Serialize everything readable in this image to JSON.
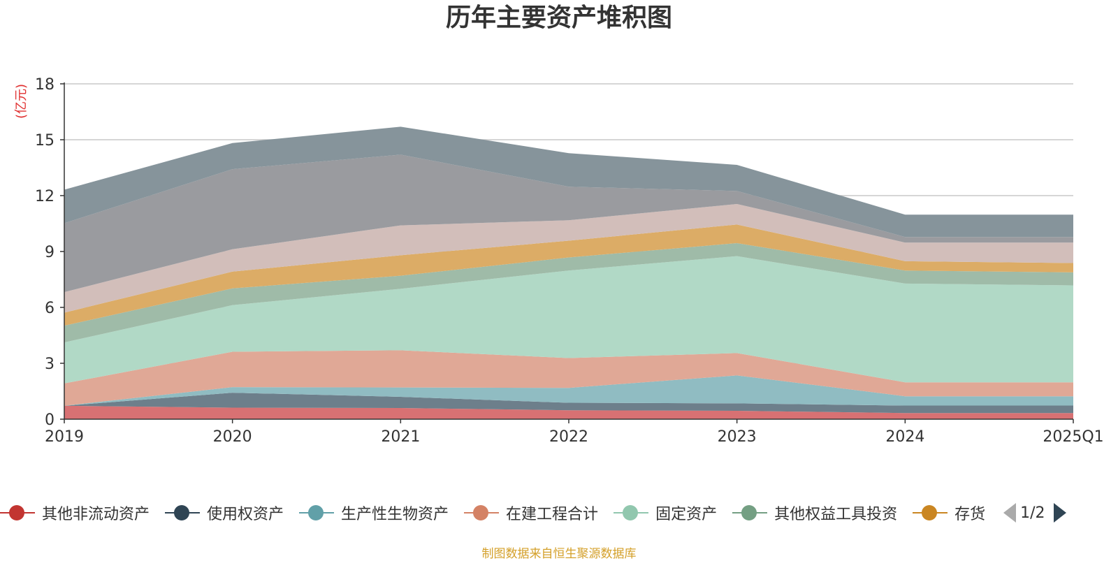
{
  "title": "历年主要资产堆积图",
  "source_note": "制图数据来自恒生聚源数据库",
  "pager": {
    "text": "1/2"
  },
  "legend": [
    {
      "name": "其他非流动资产",
      "color": "#c23531"
    },
    {
      "name": "使用权资产",
      "color": "#2f4554"
    },
    {
      "name": "生产性生物资产",
      "color": "#61a0a8"
    },
    {
      "name": "在建工程合计",
      "color": "#d48265"
    },
    {
      "name": "固定资产",
      "color": "#91c7ae"
    },
    {
      "name": "其他权益工具投资",
      "color": "#749f83"
    },
    {
      "name": "存货",
      "color": "#ca8622"
    }
  ],
  "chart_data": {
    "type": "area",
    "stacked": true,
    "ylabel": "(亿元)",
    "ylim": [
      0,
      18
    ],
    "yticks": [
      0,
      3,
      6,
      9,
      12,
      15,
      18
    ],
    "grid": true,
    "legend_position": "bottom",
    "categories": [
      "2019",
      "2020",
      "2021",
      "2022",
      "2023",
      "2024",
      "2025Q1"
    ],
    "series": [
      {
        "name": "其他非流动资产",
        "color": "#d87173",
        "values": [
          0.72,
          0.62,
          0.6,
          0.48,
          0.45,
          0.33,
          0.33
        ]
      },
      {
        "name": "使用权资产",
        "color": "#6d7f8b",
        "values": [
          0.0,
          0.8,
          0.6,
          0.4,
          0.4,
          0.4,
          0.4
        ]
      },
      {
        "name": "生产性生物资产",
        "color": "#90bcc2",
        "values": [
          0.0,
          0.3,
          0.5,
          0.8,
          1.5,
          0.5,
          0.5
        ]
      },
      {
        "name": "在建工程合计",
        "color": "#e0a896",
        "values": [
          1.2,
          1.9,
          2.0,
          1.6,
          1.2,
          0.75,
          0.75
        ]
      },
      {
        "name": "固定资产",
        "color": "#b1d9c6",
        "values": [
          2.2,
          2.5,
          3.3,
          4.7,
          5.2,
          5.3,
          5.2
        ]
      },
      {
        "name": "其他权益工具投资",
        "color": "#9fbba8",
        "values": [
          0.9,
          0.9,
          0.7,
          0.7,
          0.7,
          0.7,
          0.7
        ]
      },
      {
        "name": "存货",
        "color": "#dcac66",
        "values": [
          0.7,
          0.9,
          1.1,
          0.9,
          1.0,
          0.5,
          0.5
        ]
      },
      {
        "values": [
          1.1,
          1.2,
          1.6,
          1.1,
          1.1,
          1.0,
          1.1
        ],
        "color": "#d2beba"
      },
      {
        "values": [
          3.7,
          4.3,
          3.8,
          1.8,
          0.7,
          0.3,
          0.3
        ],
        "color": "#9a9b9f"
      },
      {
        "values": [
          1.8,
          1.4,
          1.5,
          1.8,
          1.4,
          1.2,
          1.2
        ],
        "color": "#86949b"
      }
    ]
  }
}
